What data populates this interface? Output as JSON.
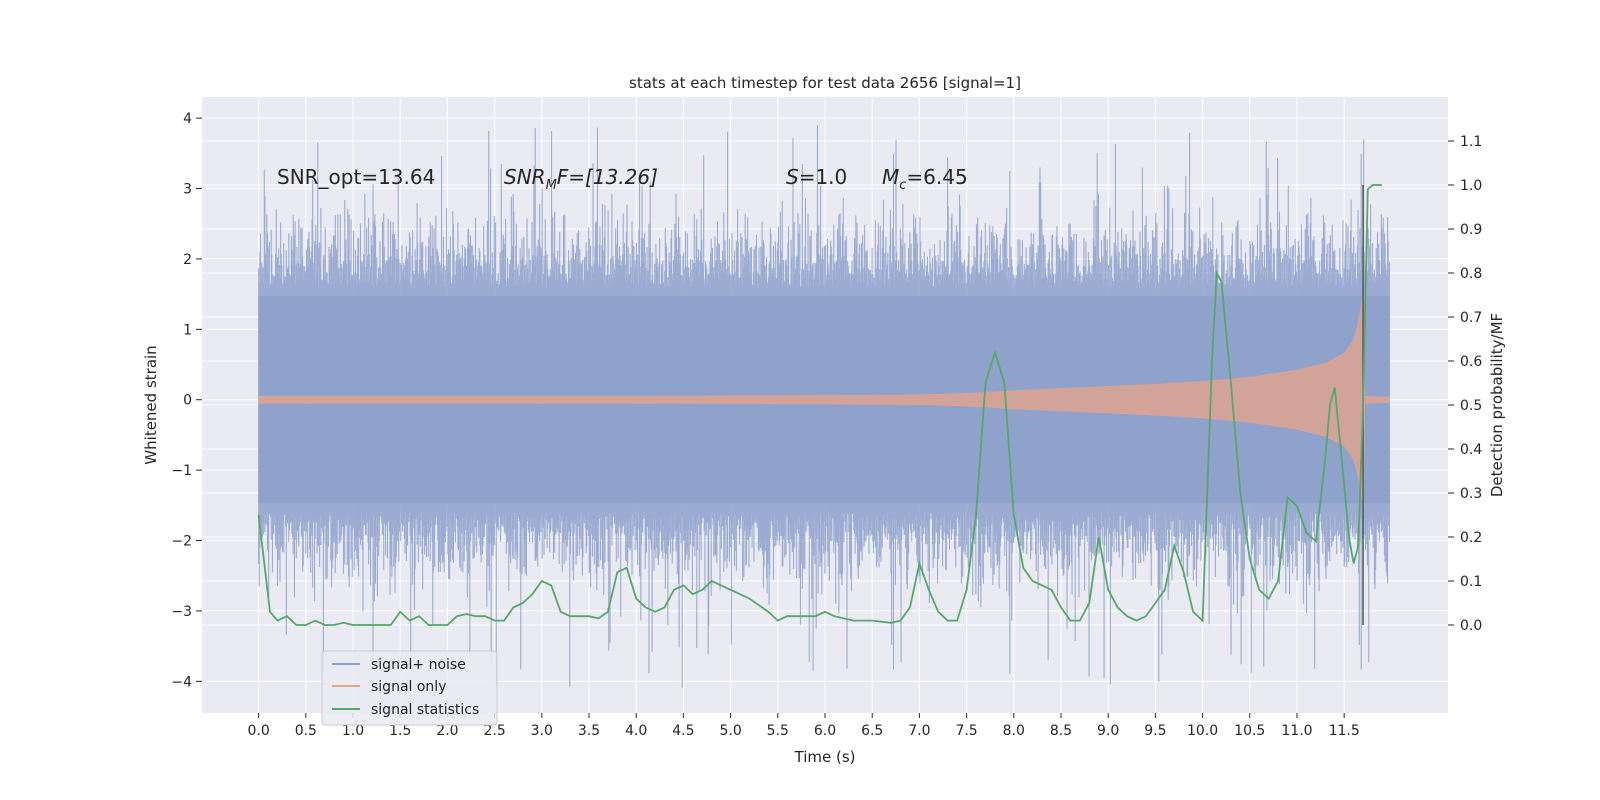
{
  "chart_data": {
    "type": "line",
    "title": "stats at each timestep for test data 2656 [signal=1]",
    "xlabel": "Time (s)",
    "ylabel": "Whitened strain",
    "y2label": "Detection probability/MF",
    "xlim": [
      -0.6,
      12.6
    ],
    "ylim": [
      -4.45,
      4.3
    ],
    "y2lim": [
      -0.2,
      1.2
    ],
    "xticks": [
      "0.0",
      "0.5",
      "1.0",
      "1.5",
      "2.0",
      "2.5",
      "3.0",
      "3.5",
      "4.0",
      "4.5",
      "5.0",
      "5.5",
      "6.0",
      "6.5",
      "7.0",
      "7.5",
      "8.0",
      "8.5",
      "9.0",
      "9.5",
      "10.0",
      "10.5",
      "11.0",
      "11.5"
    ],
    "yticks": [
      "4",
      "3",
      "2",
      "1",
      "0",
      "−1",
      "−2",
      "−3",
      "−4"
    ],
    "y2ticks": [
      "1.1",
      "1.0",
      "0.9",
      "0.8",
      "0.7",
      "0.6",
      "0.5",
      "0.4",
      "0.3",
      "0.2",
      "0.1",
      "0.0"
    ],
    "annotations": {
      "snr_opt": "SNR_opt=13.64",
      "snr_mf_base": "SNR",
      "snr_mf_sub": "M",
      "snr_mf_rest": "F=[13.26]",
      "s_sym": "S",
      "s_val": "=1.0",
      "mc_sym": "M",
      "mc_sub": "c",
      "mc_val": "=6.45"
    },
    "legend": {
      "position": "lower-left",
      "entries": [
        "signal+ noise",
        "signal only",
        "signal statistics"
      ]
    },
    "colors": {
      "noise": "#8da0cb",
      "signal": "#e5a48a",
      "stats": "#55a868",
      "marker": "#555555",
      "background": "#eaeaf2",
      "grid": "#ffffff"
    },
    "noise_series": {
      "name": "signal+ noise",
      "t_start": 0.0,
      "t_end": 11.98,
      "n_samples": 1800,
      "bulk_amplitude": 1.6,
      "max_positive": 3.9,
      "max_negative": -4.1
    },
    "signal_series": {
      "name": "signal only",
      "t_start": 0.0,
      "t_end": 11.98,
      "envelope_t": [
        0.0,
        2.0,
        4.0,
        6.0,
        7.0,
        7.5,
        8.0,
        8.5,
        9.0,
        9.5,
        10.0,
        10.5,
        11.0,
        11.3,
        11.5,
        11.6,
        11.65,
        11.7
      ],
      "envelope_amp": [
        0.05,
        0.05,
        0.05,
        0.06,
        0.07,
        0.09,
        0.13,
        0.16,
        0.19,
        0.22,
        0.26,
        0.32,
        0.42,
        0.52,
        0.66,
        0.85,
        1.1,
        1.5
      ],
      "merger_time": 11.7
    },
    "stats_series": {
      "name": "signal statistics",
      "t": [
        0.0,
        0.12,
        0.2,
        0.3,
        0.4,
        0.5,
        0.6,
        0.7,
        0.8,
        0.9,
        1.0,
        1.2,
        1.3,
        1.4,
        1.5,
        1.6,
        1.7,
        1.8,
        1.9,
        2.0,
        2.1,
        2.2,
        2.3,
        2.4,
        2.5,
        2.6,
        2.7,
        2.8,
        2.9,
        3.0,
        3.1,
        3.2,
        3.3,
        3.4,
        3.5,
        3.6,
        3.7,
        3.8,
        3.9,
        4.0,
        4.1,
        4.2,
        4.3,
        4.4,
        4.5,
        4.6,
        4.7,
        4.8,
        4.9,
        5.0,
        5.2,
        5.4,
        5.5,
        5.6,
        5.8,
        5.9,
        6.0,
        6.1,
        6.3,
        6.5,
        6.7,
        6.8,
        6.9,
        7.0,
        7.1,
        7.2,
        7.3,
        7.4,
        7.5,
        7.6,
        7.7,
        7.8,
        7.9,
        8.0,
        8.1,
        8.2,
        8.3,
        8.4,
        8.5,
        8.6,
        8.7,
        8.8,
        8.9,
        9.0,
        9.1,
        9.2,
        9.3,
        9.4,
        9.5,
        9.6,
        9.7,
        9.8,
        9.9,
        10.0,
        10.1,
        10.15,
        10.2,
        10.3,
        10.4,
        10.5,
        10.6,
        10.7,
        10.8,
        10.9,
        11.0,
        11.1,
        11.2,
        11.3,
        11.35,
        11.4,
        11.5,
        11.55,
        11.6,
        11.65,
        11.7,
        11.75,
        11.8,
        11.9
      ],
      "p": [
        0.25,
        0.03,
        0.01,
        0.02,
        0.0,
        0.0,
        0.01,
        0.0,
        0.0,
        0.005,
        0.0,
        0.0,
        0.0,
        0.0,
        0.03,
        0.01,
        0.02,
        0.0,
        0.0,
        0.0,
        0.02,
        0.025,
        0.02,
        0.02,
        0.01,
        0.01,
        0.04,
        0.05,
        0.07,
        0.1,
        0.09,
        0.03,
        0.02,
        0.02,
        0.02,
        0.015,
        0.03,
        0.12,
        0.13,
        0.06,
        0.04,
        0.03,
        0.04,
        0.08,
        0.09,
        0.07,
        0.08,
        0.1,
        0.09,
        0.08,
        0.06,
        0.03,
        0.01,
        0.02,
        0.02,
        0.02,
        0.03,
        0.02,
        0.01,
        0.01,
        0.005,
        0.01,
        0.04,
        0.14,
        0.08,
        0.03,
        0.01,
        0.01,
        0.08,
        0.25,
        0.55,
        0.62,
        0.55,
        0.25,
        0.13,
        0.1,
        0.09,
        0.08,
        0.04,
        0.01,
        0.01,
        0.05,
        0.2,
        0.08,
        0.04,
        0.02,
        0.01,
        0.02,
        0.05,
        0.08,
        0.18,
        0.12,
        0.03,
        0.01,
        0.6,
        0.8,
        0.78,
        0.55,
        0.3,
        0.15,
        0.08,
        0.06,
        0.1,
        0.29,
        0.27,
        0.21,
        0.19,
        0.38,
        0.5,
        0.54,
        0.32,
        0.2,
        0.14,
        0.18,
        0.5,
        0.99,
        1.0,
        1.0
      ]
    }
  }
}
